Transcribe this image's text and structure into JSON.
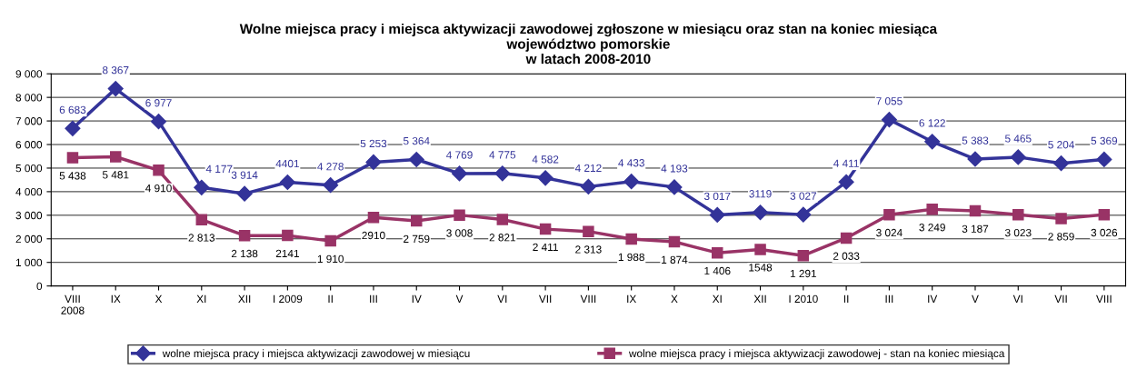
{
  "chart_data": {
    "type": "line",
    "title": "Wolne miejsca pracy i miejsca aktywizacji zawodowej zgłoszone w miesiącu oraz stan na koniec miesiąca\nwojewództwo pomorskie\nw latach 2008-2010",
    "categories": [
      "VIII\n2008",
      "IX",
      "X",
      "XI",
      "XII",
      "I 2009",
      "II",
      "III",
      "IV",
      "V",
      "VI",
      "VII",
      "VIII",
      "IX",
      "X",
      "XI",
      "XII",
      "I 2010",
      "II",
      "III",
      "IV",
      "V",
      "VI",
      "VII",
      "VIII"
    ],
    "series": [
      {
        "name": "wolne miejsca pracy i miejsca aktywizacji zawodowej w miesiącu",
        "color": "#333399",
        "marker": "diamond",
        "values": [
          6683,
          8367,
          6977,
          4177,
          3914,
          4401,
          4278,
          5253,
          5364,
          4769,
          4775,
          4582,
          4212,
          4433,
          4193,
          3017,
          3119,
          3027,
          4411,
          7055,
          6122,
          5383,
          5465,
          5204,
          5369
        ],
        "value_labels": [
          "6 683",
          "8 367",
          "6 977",
          "4 177",
          "3 914",
          "4401",
          "4 278",
          "5 253",
          "5 364",
          "4 769",
          "4 775",
          "4 582",
          "4 212",
          "4 433",
          "4 193",
          "3 017",
          "3119",
          "3 027",
          "4 411",
          "7 055",
          "6 122",
          "5 383",
          "5 465",
          "5 204",
          "5 369"
        ]
      },
      {
        "name": "wolne miejsca pracy i miejsca aktywizacji zawodowej - stan na koniec miesiąca",
        "color": "#993366",
        "marker": "square",
        "values": [
          5438,
          5481,
          4910,
          2813,
          2138,
          2141,
          1910,
          2910,
          2759,
          3008,
          2821,
          2411,
          2313,
          1988,
          1874,
          1406,
          1548,
          1291,
          2033,
          3024,
          3249,
          3187,
          3023,
          2859,
          3026
        ],
        "value_labels": [
          "5 438",
          "5 481",
          "4 910",
          "2 813",
          "2 138",
          "2141",
          "1 910",
          "2910",
          "2 759",
          "3 008",
          "2 821",
          "2 411",
          "2 313",
          "1 988",
          "1 874",
          "1 406",
          "1548",
          "1 291",
          "2 033",
          "3 024",
          "3 249",
          "3 187",
          "3 023",
          "2 859",
          "3 026"
        ]
      }
    ],
    "ylim": [
      0,
      9000
    ],
    "yticks": [
      {
        "value": 0,
        "label": "0"
      },
      {
        "value": 1000,
        "label": "1 000"
      },
      {
        "value": 2000,
        "label": "2 000"
      },
      {
        "value": 3000,
        "label": "3 000"
      },
      {
        "value": 4000,
        "label": "4 000"
      },
      {
        "value": 5000,
        "label": "5 000"
      },
      {
        "value": 6000,
        "label": "6 000"
      },
      {
        "value": 7000,
        "label": "7 000"
      },
      {
        "value": 8000,
        "label": "8 000"
      },
      {
        "value": 9000,
        "label": "9 000"
      }
    ],
    "grid": "y",
    "legend": "bottom",
    "line_style": "solid"
  }
}
